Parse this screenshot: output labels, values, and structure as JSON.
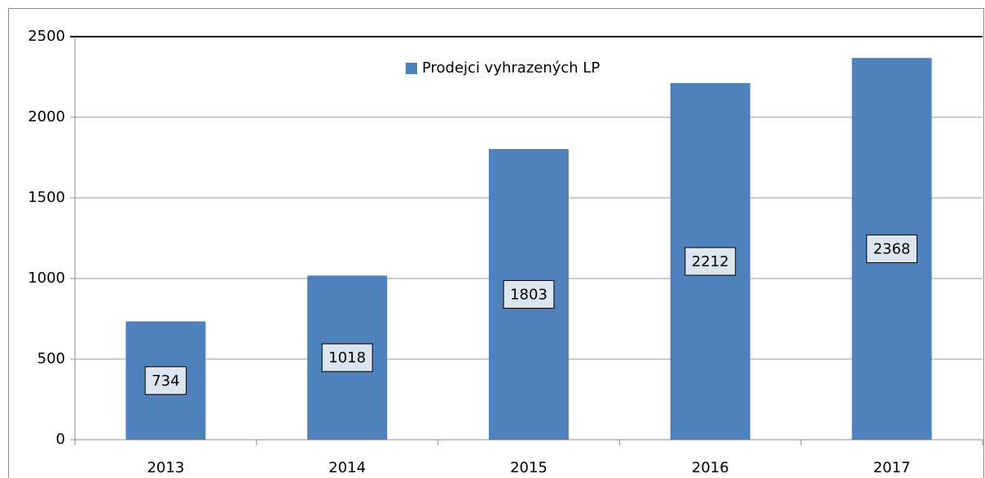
{
  "chart_data": {
    "type": "bar",
    "categories": [
      "2013",
      "2014",
      "2015",
      "2016",
      "2017"
    ],
    "series": [
      {
        "name": "Prodejci vyhrazených LP",
        "color": "#4f81bd",
        "values": [
          734,
          1018,
          1803,
          2212,
          2368
        ]
      }
    ],
    "ylim": [
      0,
      2500
    ],
    "yticks": [
      0,
      500,
      1000,
      1500,
      2000,
      2500
    ],
    "grid": true,
    "legend": "top",
    "data_labels": true
  }
}
